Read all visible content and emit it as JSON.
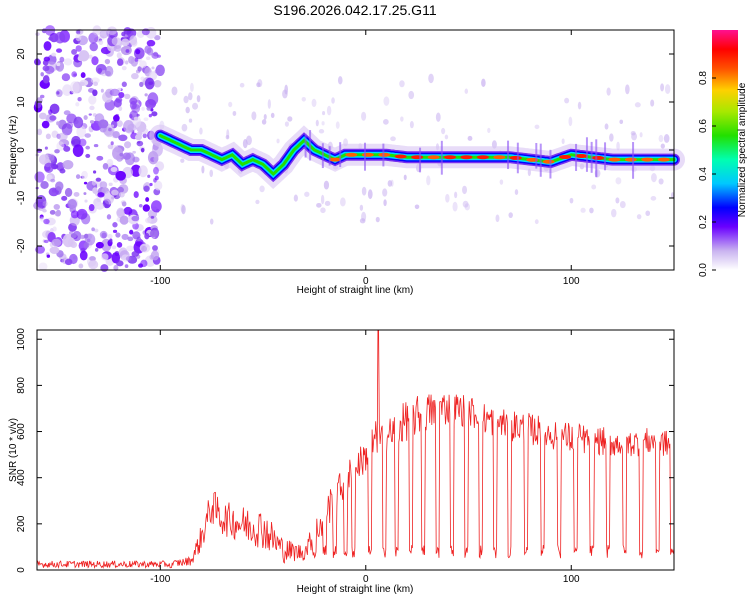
{
  "title": "S196.2026.042.17.25.G11",
  "chart_data": [
    {
      "type": "heatmap",
      "xlabel": "Height of straight line (km)",
      "ylabel": "Frequency (Hz)",
      "xlim": [
        -160,
        150
      ],
      "ylim": [
        -25,
        25
      ],
      "xticks": [
        -100,
        0,
        100
      ],
      "yticks": [
        -20,
        -10,
        0,
        10,
        20
      ],
      "noise_region": [
        -160,
        -100
      ],
      "ridge": {
        "x": [
          -100,
          -95,
          -90,
          -85,
          -80,
          -75,
          -70,
          -65,
          -60,
          -55,
          -50,
          -45,
          -40,
          -35,
          -30,
          -25,
          -20,
          -15,
          -10,
          -5,
          0,
          10,
          20,
          30,
          40,
          50,
          60,
          70,
          80,
          90,
          100,
          110,
          120,
          130,
          145
        ],
        "y": [
          3,
          2,
          1,
          0,
          0,
          -1,
          -2,
          -1,
          -3,
          -2,
          -3,
          -5,
          -3,
          0,
          2,
          0,
          -1,
          -2,
          -1,
          -1,
          -1,
          -1,
          -1.5,
          -1.5,
          -1.5,
          -1.5,
          -1.5,
          -1.5,
          -2,
          -2.5,
          -1,
          -1.5,
          -2,
          -2,
          -2
        ]
      },
      "colorbar": {
        "label": "Normalized spectral amplitude",
        "ticks": [
          "0.0",
          "0.2",
          "0.4",
          "0.6",
          "0.8"
        ],
        "range": [
          0,
          1
        ]
      }
    },
    {
      "type": "line",
      "xlabel": "Height of straight line (km)",
      "ylabel": "SNR (10 * v/v)",
      "xlim": [
        -160,
        150
      ],
      "ylim": [
        0,
        1040
      ],
      "xticks": [
        -100,
        0,
        100
      ],
      "yticks": [
        0,
        200,
        400,
        600,
        800,
        1000
      ],
      "color": "#ee2222",
      "envelope": {
        "x": [
          -160,
          -110,
          -95,
          -85,
          -80,
          -75,
          -70,
          -60,
          -50,
          -40,
          -30,
          -20,
          -15,
          -10,
          -5,
          0,
          5,
          10,
          20,
          30,
          40,
          50,
          60,
          70,
          80,
          90,
          100,
          110,
          120,
          130,
          140,
          150
        ],
        "upper": [
          40,
          40,
          40,
          60,
          200,
          360,
          300,
          280,
          270,
          140,
          110,
          320,
          400,
          460,
          520,
          560,
          650,
          650,
          740,
          770,
          780,
          760,
          720,
          700,
          680,
          660,
          640,
          630,
          610,
          610,
          620,
          600
        ],
        "lower": [
          10,
          10,
          10,
          20,
          80,
          200,
          150,
          120,
          90,
          30,
          40,
          150,
          250,
          300,
          380,
          420,
          500,
          500,
          560,
          600,
          630,
          620,
          580,
          560,
          540,
          520,
          500,
          500,
          490,
          490,
          500,
          480
        ]
      },
      "spikes": [
        {
          "x": 6,
          "y": 1040
        },
        {
          "x": -95,
          "y": 10
        }
      ],
      "drops": [
        -25,
        -20,
        -15,
        -10,
        -6,
        2,
        9,
        15,
        22,
        28,
        35,
        42,
        49,
        56,
        63,
        70,
        78,
        86,
        94,
        102,
        110,
        118,
        126,
        134,
        142,
        149
      ],
      "drop_min": 50
    }
  ]
}
